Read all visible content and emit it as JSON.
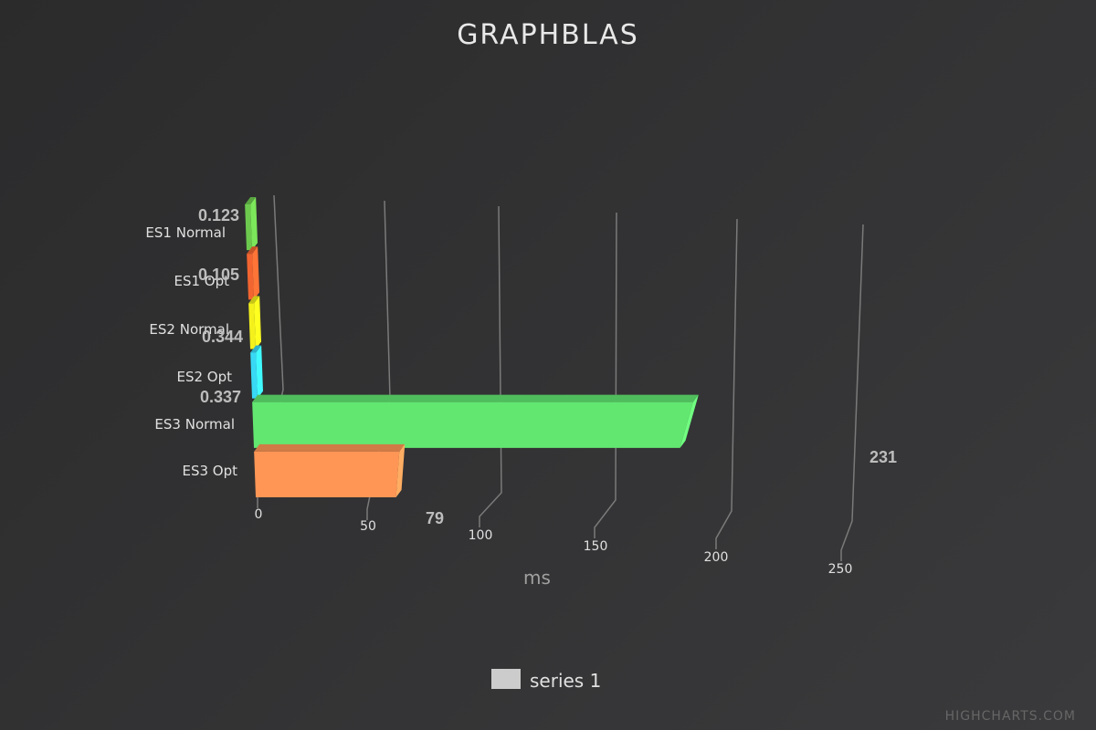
{
  "chart_data": {
    "type": "bar",
    "orientation": "horizontal",
    "render_3d": true,
    "title": "GRAPHBLAS",
    "xlabel": "ms",
    "categories": [
      "ES1 Normal",
      "ES1 Opt",
      "ES2 Normal",
      "ES2 Opt",
      "ES3 Normal",
      "ES3 Opt"
    ],
    "series": [
      {
        "name": "series 1",
        "values": [
          0.123,
          0.105,
          0.344,
          0.337,
          231,
          79
        ]
      }
    ],
    "data_labels": [
      "0.123",
      "0.105",
      "0.344",
      "0.337",
      "231",
      "79"
    ],
    "bar_colors": [
      "#6cc94e",
      "#f26530",
      "#f3f01c",
      "#38d9f5",
      "#62e770",
      "#ff9655"
    ],
    "xlim": [
      0,
      250
    ],
    "ticks": [
      0,
      50,
      100,
      150,
      200,
      250
    ],
    "tick_labels": [
      "0",
      "50",
      "100",
      "150",
      "200",
      "250"
    ],
    "grid": true,
    "legend": {
      "position": "bottom-center",
      "swatch_color": "#cccccc"
    }
  },
  "credits": "HIGHCHARTS.COM",
  "colors": {
    "background": "#333335",
    "grid": "#7a7a7a",
    "label": "#bdbdbd"
  }
}
